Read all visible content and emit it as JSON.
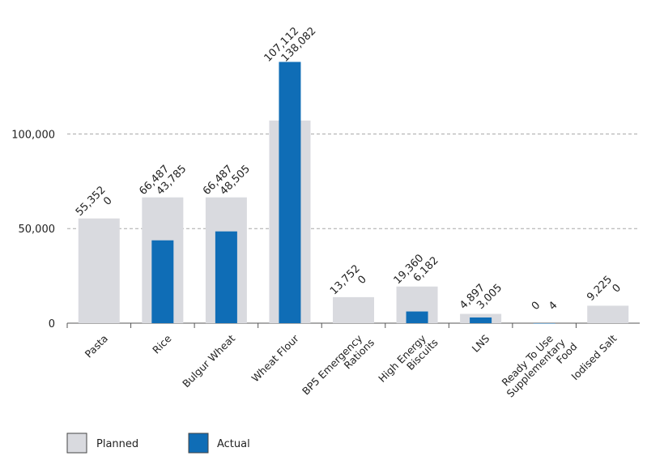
{
  "chart_data": {
    "type": "bar",
    "categories": [
      "Pasta",
      "Rice",
      "Bulgur Wheat",
      "Wheat Flour",
      "BP5 Emergency Rations",
      "High Energy Biscuits",
      "LNS",
      "Ready To Use Supplementary Food",
      "Iodised Salt"
    ],
    "category_lines": [
      [
        "Pasta"
      ],
      [
        "Rice"
      ],
      [
        "Bulgur Wheat"
      ],
      [
        "Wheat Flour"
      ],
      [
        "BP5 Emergency",
        "Rations"
      ],
      [
        "High Energy",
        "Biscuits"
      ],
      [
        "LNS"
      ],
      [
        "Ready To Use",
        "Supplementary",
        "Food"
      ],
      [
        "Iodised Salt"
      ]
    ],
    "series": [
      {
        "name": "Planned",
        "values": [
          55352,
          66487,
          66487,
          107112,
          13752,
          19360,
          4897,
          0,
          9225
        ],
        "color": "#d9dadf"
      },
      {
        "name": "Actual",
        "values": [
          0,
          43785,
          48505,
          138082,
          0,
          6182,
          3005,
          4,
          0
        ],
        "color": "#0f6db6"
      }
    ],
    "value_labels": {
      "planned": [
        "55,352",
        "66,487",
        "66,487",
        "107,112",
        "13,752",
        "19,360",
        "4,897",
        "0",
        "9,225"
      ],
      "actual": [
        "0",
        "43,785",
        "48,505",
        "138,082",
        "0",
        "6,182",
        "3,005",
        "4",
        "0"
      ]
    },
    "y_ticks": [
      0,
      50000,
      100000
    ],
    "y_tick_labels": [
      "0",
      "50,000",
      "100,000"
    ],
    "ylim": [
      0,
      150000
    ],
    "grid": "horizontal-dashed",
    "legend_position": "bottom-left",
    "title": "",
    "xlabel": "",
    "ylabel": ""
  }
}
